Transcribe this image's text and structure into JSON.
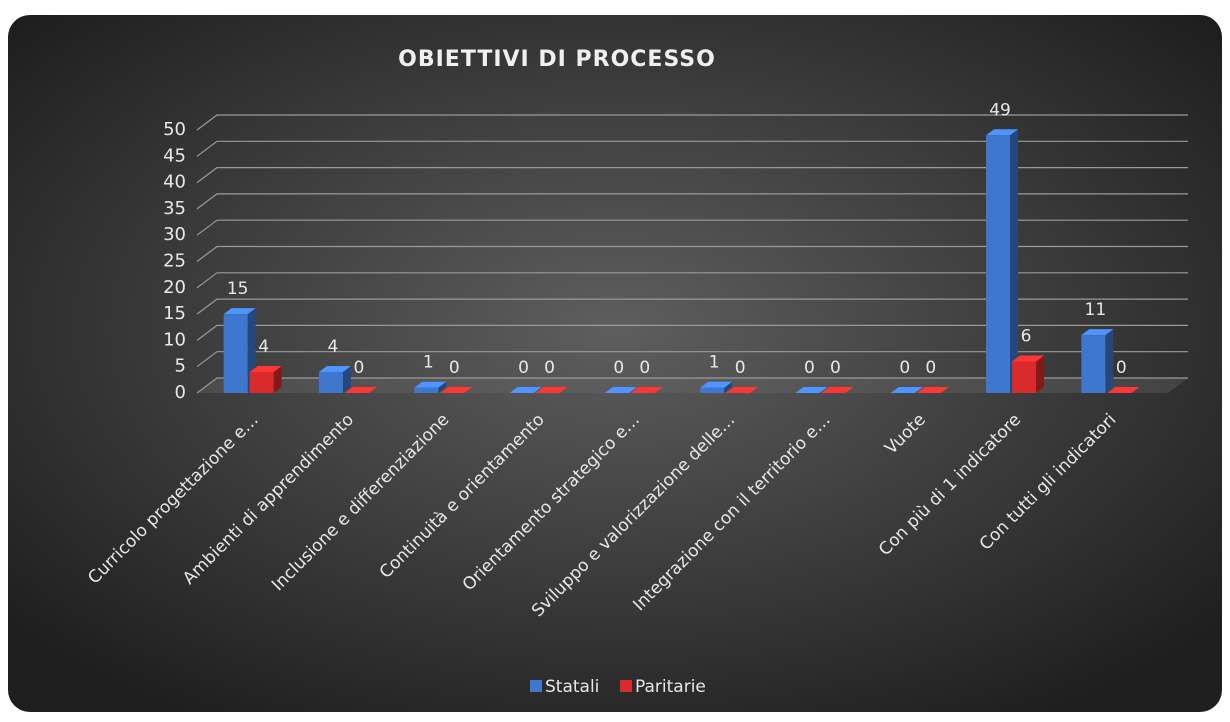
{
  "chart_data": {
    "type": "bar3d",
    "title": "OBIETTIVI DI PROCESSO",
    "categories": [
      "Curricolo progettazione e…",
      "Ambienti di apprendimento",
      "Inclusione e differenziazione",
      "Continuità e orientamento",
      "Orientamento strategico e…",
      "Sviluppo e valorizzazione delle…",
      "Integrazione con il territorio e…",
      "Vuote",
      "Con più di 1 indicatore",
      "Con tutti gli indicatori"
    ],
    "series": [
      {
        "name": "Statali",
        "color": "#3f77cf",
        "values": [
          15,
          4,
          1,
          0,
          0,
          1,
          0,
          0,
          49,
          11
        ]
      },
      {
        "name": "Paritarie",
        "color": "#d92b2b",
        "values": [
          4,
          0,
          0,
          0,
          0,
          0,
          0,
          0,
          6,
          0
        ]
      }
    ],
    "ylim": [
      0,
      50
    ],
    "yticks": [
      0,
      5,
      10,
      15,
      20,
      25,
      30,
      35,
      40,
      45,
      50
    ],
    "grid": true,
    "legend": "bottom"
  }
}
